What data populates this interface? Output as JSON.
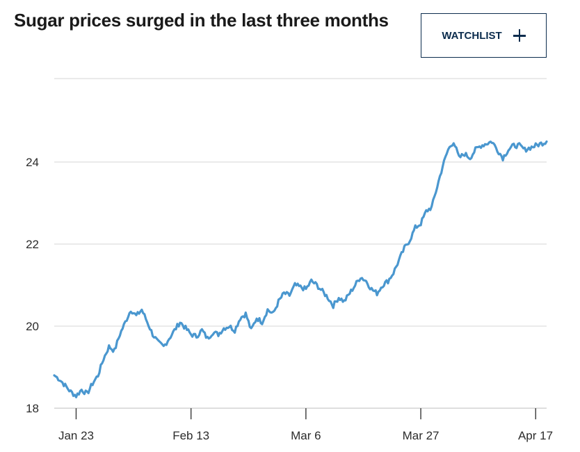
{
  "header": {
    "title": "Sugar prices surged in the last three months",
    "watchlist_label": "WATCHLIST"
  },
  "colors": {
    "line": "#4a97cf",
    "grid": "#d6d6d6",
    "axis": "#bdbdbd",
    "button": "#0b2c4d"
  },
  "chart_data": {
    "type": "line",
    "title": "Sugar prices surged in the last three months",
    "xlabel": "",
    "ylabel": "",
    "ylim": [
      18,
      25.9
    ],
    "y_ticks": [
      18,
      20,
      22,
      24
    ],
    "x_ticks": [
      "Jan 23",
      "Feb 13",
      "Mar 6",
      "Mar 27",
      "Apr 17"
    ],
    "grid": true,
    "legend": "none",
    "series": [
      {
        "x": [
          "Jan 19",
          "Jan 20",
          "Jan 21",
          "Jan 22",
          "Jan 23",
          "Jan 24",
          "Jan 25",
          "Jan 26",
          "Jan 27",
          "Jan 28",
          "Jan 29",
          "Jan 30",
          "Jan 31",
          "Feb 1",
          "Feb 2",
          "Feb 3",
          "Feb 4",
          "Feb 5",
          "Feb 6",
          "Feb 7",
          "Feb 8",
          "Feb 9",
          "Feb 10",
          "Feb 11",
          "Feb 12",
          "Feb 13",
          "Feb 14",
          "Feb 15",
          "Feb 16",
          "Feb 17",
          "Feb 18",
          "Feb 19",
          "Feb 20",
          "Feb 21",
          "Feb 22",
          "Feb 23",
          "Feb 24",
          "Feb 25",
          "Feb 26",
          "Feb 27",
          "Feb 28",
          "Mar 1",
          "Mar 2",
          "Mar 3",
          "Mar 4",
          "Mar 5",
          "Mar 6",
          "Mar 7",
          "Mar 8",
          "Mar 9",
          "Mar 10",
          "Mar 11",
          "Mar 12",
          "Mar 13",
          "Mar 14",
          "Mar 15",
          "Mar 16",
          "Mar 17",
          "Mar 18",
          "Mar 19",
          "Mar 20",
          "Mar 21",
          "Mar 22",
          "Mar 23",
          "Mar 24",
          "Mar 25",
          "Mar 26",
          "Mar 27",
          "Mar 28",
          "Mar 29",
          "Mar 30",
          "Mar 31",
          "Apr 1",
          "Apr 2",
          "Apr 3",
          "Apr 4",
          "Apr 5",
          "Apr 6",
          "Apr 7",
          "Apr 8",
          "Apr 9",
          "Apr 10",
          "Apr 11",
          "Apr 12",
          "Apr 13",
          "Apr 14",
          "Apr 15",
          "Apr 16",
          "Apr 17",
          "Apr 18",
          "Apr 19"
        ],
        "values": [
          18.8,
          18.7,
          18.55,
          18.4,
          18.3,
          18.45,
          18.35,
          18.6,
          18.8,
          19.2,
          19.5,
          19.4,
          19.8,
          20.1,
          20.4,
          20.25,
          20.4,
          20.1,
          19.8,
          19.6,
          19.5,
          19.7,
          19.9,
          20.1,
          19.95,
          19.8,
          19.75,
          19.9,
          19.7,
          19.85,
          19.8,
          19.95,
          20.0,
          19.9,
          20.2,
          20.3,
          19.9,
          20.2,
          20.1,
          20.4,
          20.3,
          20.6,
          20.8,
          20.75,
          21.0,
          20.95,
          20.9,
          21.1,
          21.0,
          20.85,
          20.7,
          20.5,
          20.7,
          20.6,
          20.8,
          21.0,
          21.2,
          21.1,
          20.9,
          20.8,
          21.0,
          21.1,
          21.3,
          21.6,
          21.9,
          22.1,
          22.4,
          22.5,
          22.8,
          22.9,
          23.4,
          23.9,
          24.3,
          24.5,
          24.1,
          24.2,
          24.1,
          24.3,
          24.4,
          24.45,
          24.5,
          24.3,
          24.1,
          24.3,
          24.4,
          24.4,
          24.3,
          24.35,
          24.4,
          24.45,
          24.5
        ]
      }
    ]
  }
}
